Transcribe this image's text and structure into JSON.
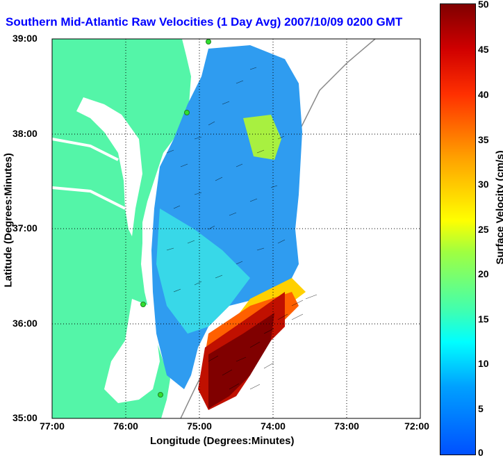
{
  "title": "Southern Mid-Atlantic Raw Velocities (1 Day Avg) 2007/10/09 0200 GMT",
  "axes": {
    "xlabel": "Longitude (Degrees:Minutes)",
    "ylabel": "Latitude (Degrees:Minutes)",
    "x_ticks": [
      "77:00",
      "76:00",
      "75:00",
      "74:00",
      "73:00",
      "72:00"
    ],
    "y_ticks": [
      "39:00",
      "38:00",
      "37:00",
      "36:00",
      "35:00"
    ]
  },
  "colorbar": {
    "label": "Surface Velocity (cm/s)",
    "ticks": [
      "50",
      "45",
      "40",
      "35",
      "30",
      "25",
      "20",
      "15",
      "10",
      "5",
      "0"
    ],
    "range": [
      0,
      50
    ],
    "colors": [
      "#0050ff",
      "#00a0ff",
      "#00ffff",
      "#40ffb0",
      "#ffff00",
      "#ffa000",
      "#ff3000",
      "#800000"
    ]
  },
  "map": {
    "land_color": "#54f5a8",
    "water_color": "#ffffff",
    "extent_lon": [
      -77,
      -72
    ],
    "extent_lat": [
      35,
      39
    ],
    "grid": "dotted"
  }
}
